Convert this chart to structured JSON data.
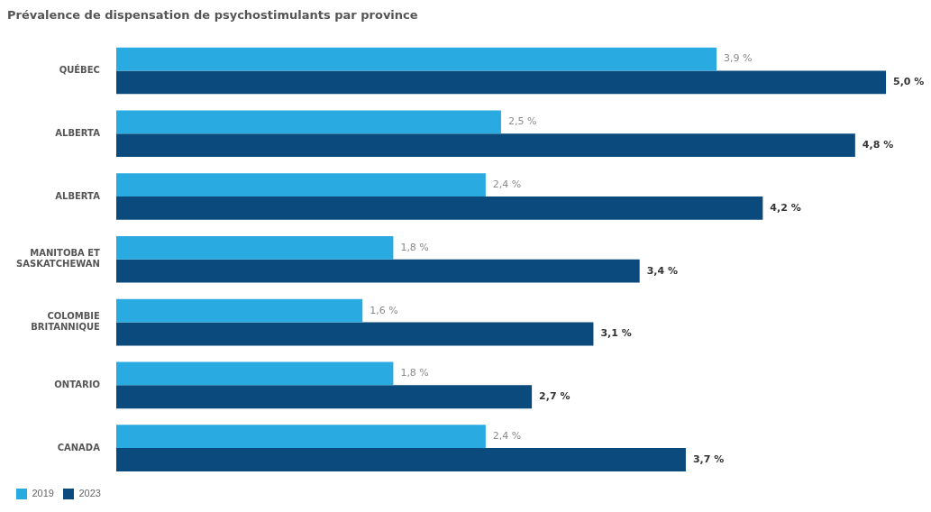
{
  "chart_data": {
    "type": "bar",
    "orientation": "horizontal",
    "title": "Prévalence de dispensation de psychostimulants par province",
    "categories": [
      "QUÉBEC",
      "ALBERTA",
      "ALBERTA",
      "MANITOBA ET SASKATCHEWAN",
      "COLOMBIE BRITANNIQUE",
      "ONTARIO",
      "CANADA"
    ],
    "series": [
      {
        "name": "2019",
        "color": "#29abe2",
        "values": [
          3.9,
          2.5,
          2.4,
          1.8,
          1.6,
          1.8,
          2.4
        ],
        "value_labels": [
          "3,9 %",
          "2,5 %",
          "2,4 %",
          "1,8 %",
          "1,6 %",
          "1,8 %",
          "2,4 %"
        ]
      },
      {
        "name": "2023",
        "color": "#0b4a7c",
        "values": [
          5.0,
          4.8,
          4.2,
          3.4,
          3.1,
          2.7,
          3.7
        ],
        "value_labels": [
          "5,0 %",
          "4,8 %",
          "4,2 %",
          "3,4 %",
          "3,1 %",
          "2,7 %",
          "3,7 %"
        ]
      }
    ],
    "legend": "bottom left"
  }
}
